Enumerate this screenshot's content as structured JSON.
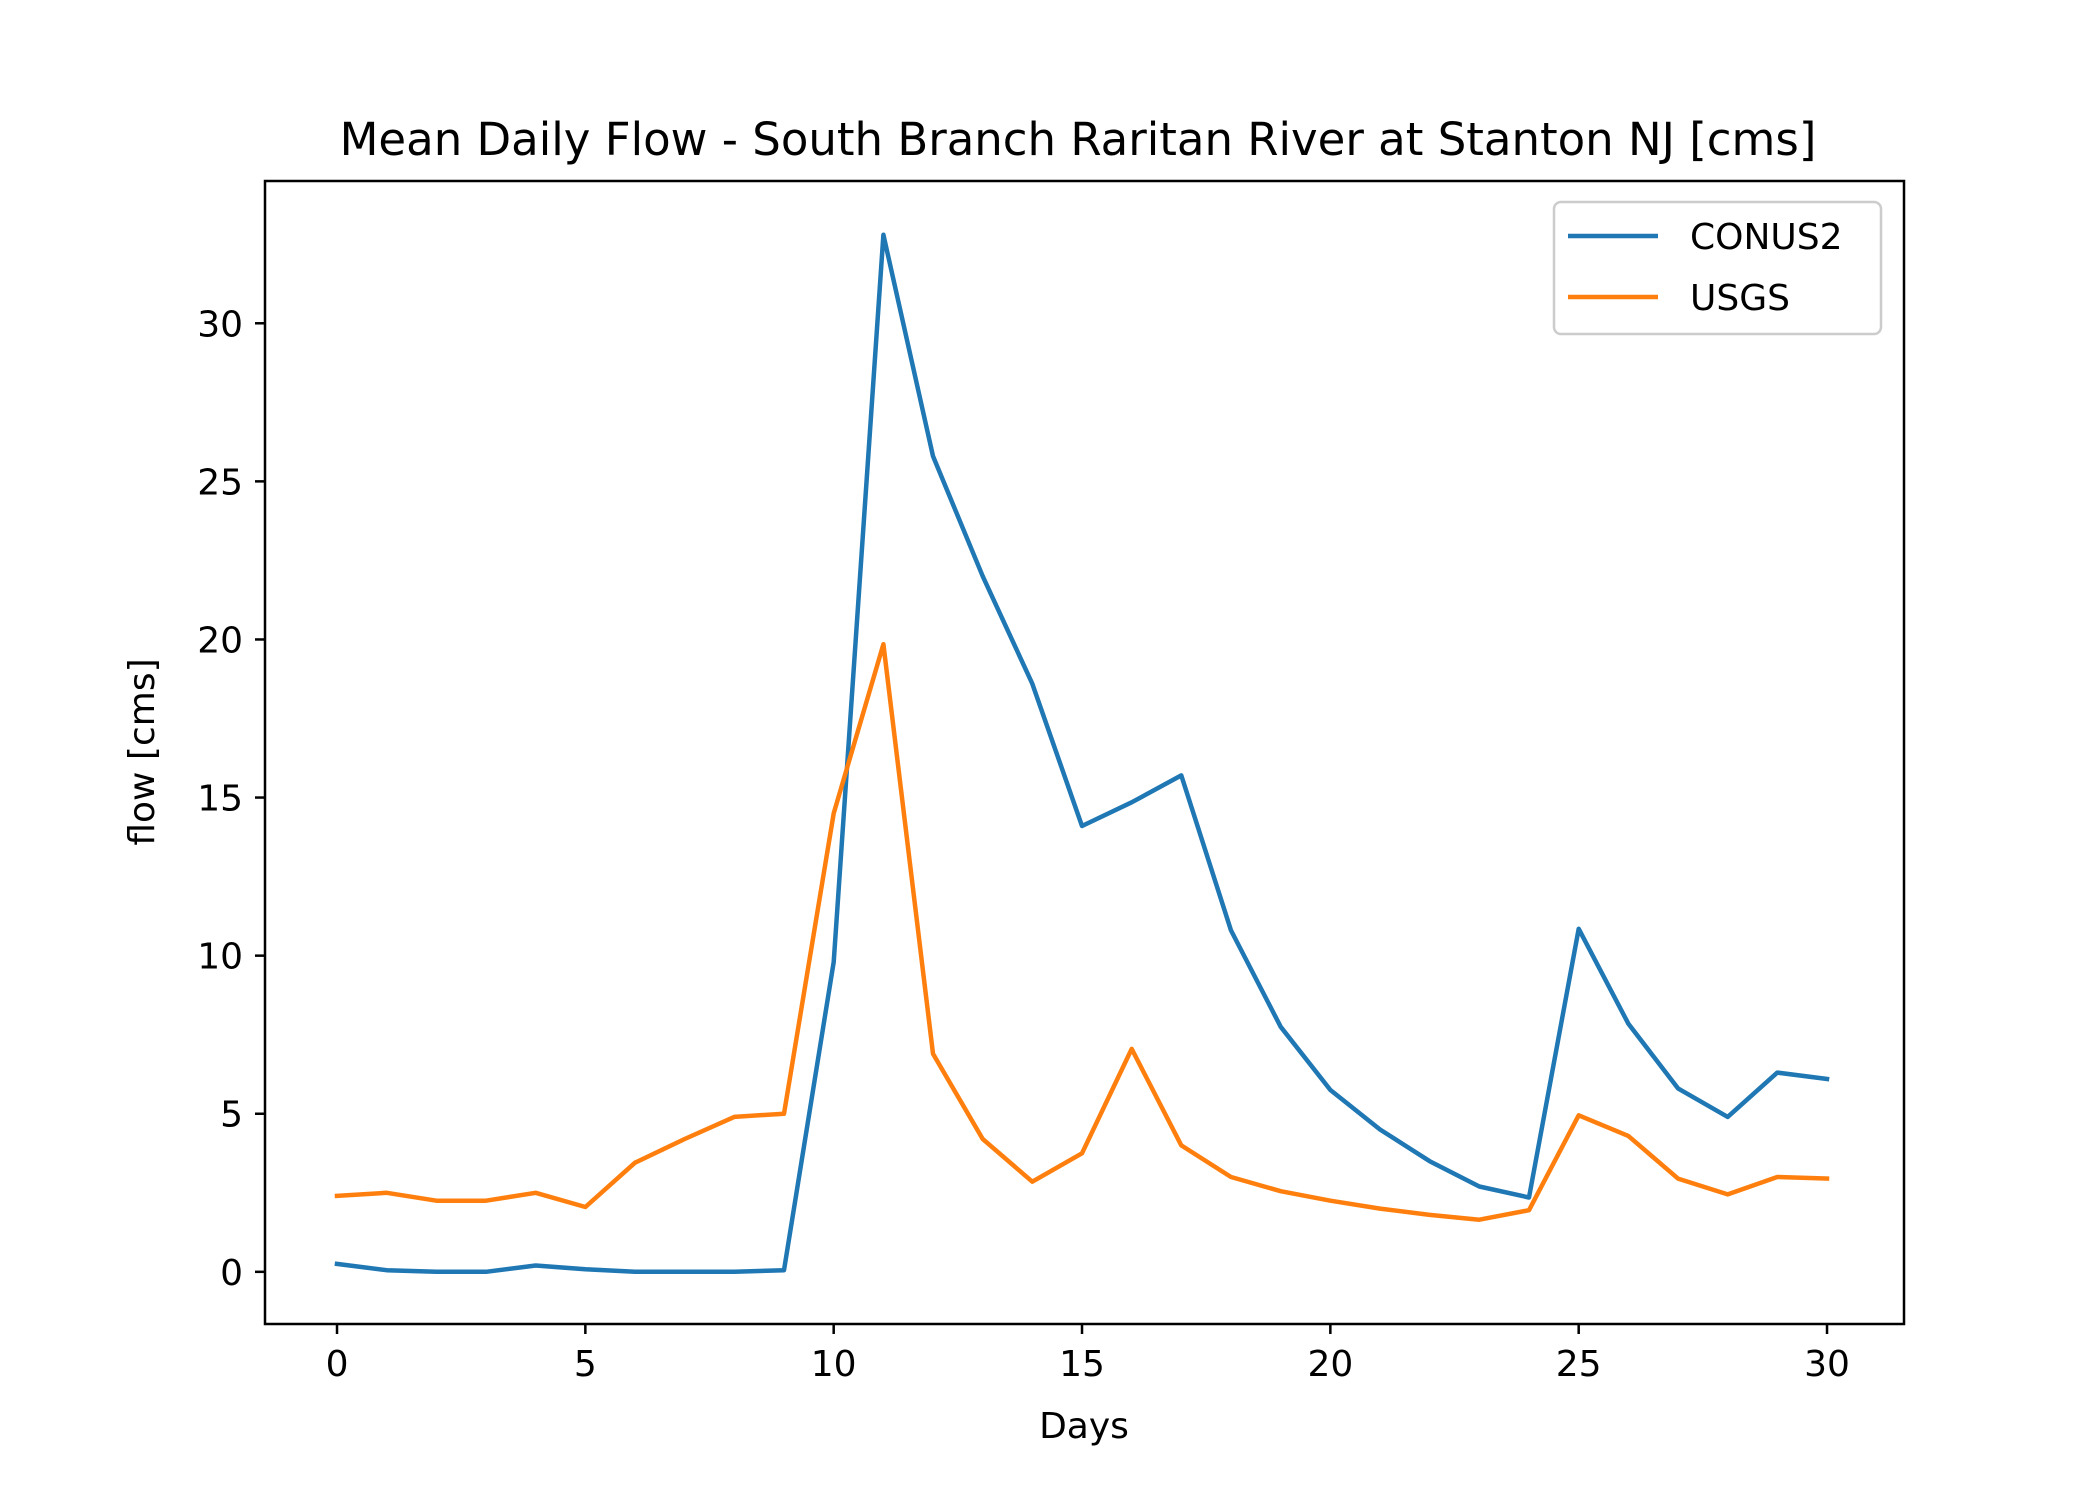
{
  "chart_data": {
    "type": "line",
    "title": "Mean Daily Flow - South Branch Raritan River at Stanton NJ [cms]",
    "xlabel": "Days",
    "ylabel": "flow [cms]",
    "xlim": [
      -1.45,
      31.55
    ],
    "ylim": [
      -1.65,
      34.5
    ],
    "xticks": [
      0,
      5,
      10,
      15,
      20,
      25,
      30
    ],
    "yticks": [
      0,
      5,
      10,
      15,
      20,
      25,
      30
    ],
    "grid": false,
    "legend_position": "top-right",
    "x": [
      0,
      1,
      2,
      3,
      4,
      5,
      6,
      7,
      8,
      9,
      10,
      11,
      12,
      13,
      14,
      15,
      16,
      17,
      18,
      19,
      20,
      21,
      22,
      23,
      24,
      25,
      26,
      27,
      28,
      29,
      30
    ],
    "series": [
      {
        "name": "CONUS2",
        "color": "#1f77b4",
        "values": [
          0.25,
          0.05,
          0.0,
          0.0,
          0.2,
          0.08,
          0.0,
          0.0,
          0.0,
          0.05,
          9.8,
          32.8,
          25.8,
          22.0,
          18.6,
          14.1,
          14.85,
          15.7,
          10.8,
          7.75,
          5.75,
          4.5,
          3.5,
          2.7,
          2.35,
          10.85,
          7.85,
          5.8,
          4.9,
          6.3,
          6.1
        ]
      },
      {
        "name": "USGS",
        "color": "#ff7f0e",
        "values": [
          2.4,
          2.5,
          2.25,
          2.25,
          2.5,
          2.05,
          3.45,
          4.2,
          4.9,
          5.0,
          14.5,
          19.85,
          6.9,
          4.2,
          2.85,
          3.75,
          7.05,
          4.0,
          3.0,
          2.55,
          2.25,
          2.0,
          1.8,
          1.65,
          1.95,
          4.95,
          4.3,
          2.95,
          2.45,
          3.0,
          2.95
        ]
      }
    ]
  }
}
